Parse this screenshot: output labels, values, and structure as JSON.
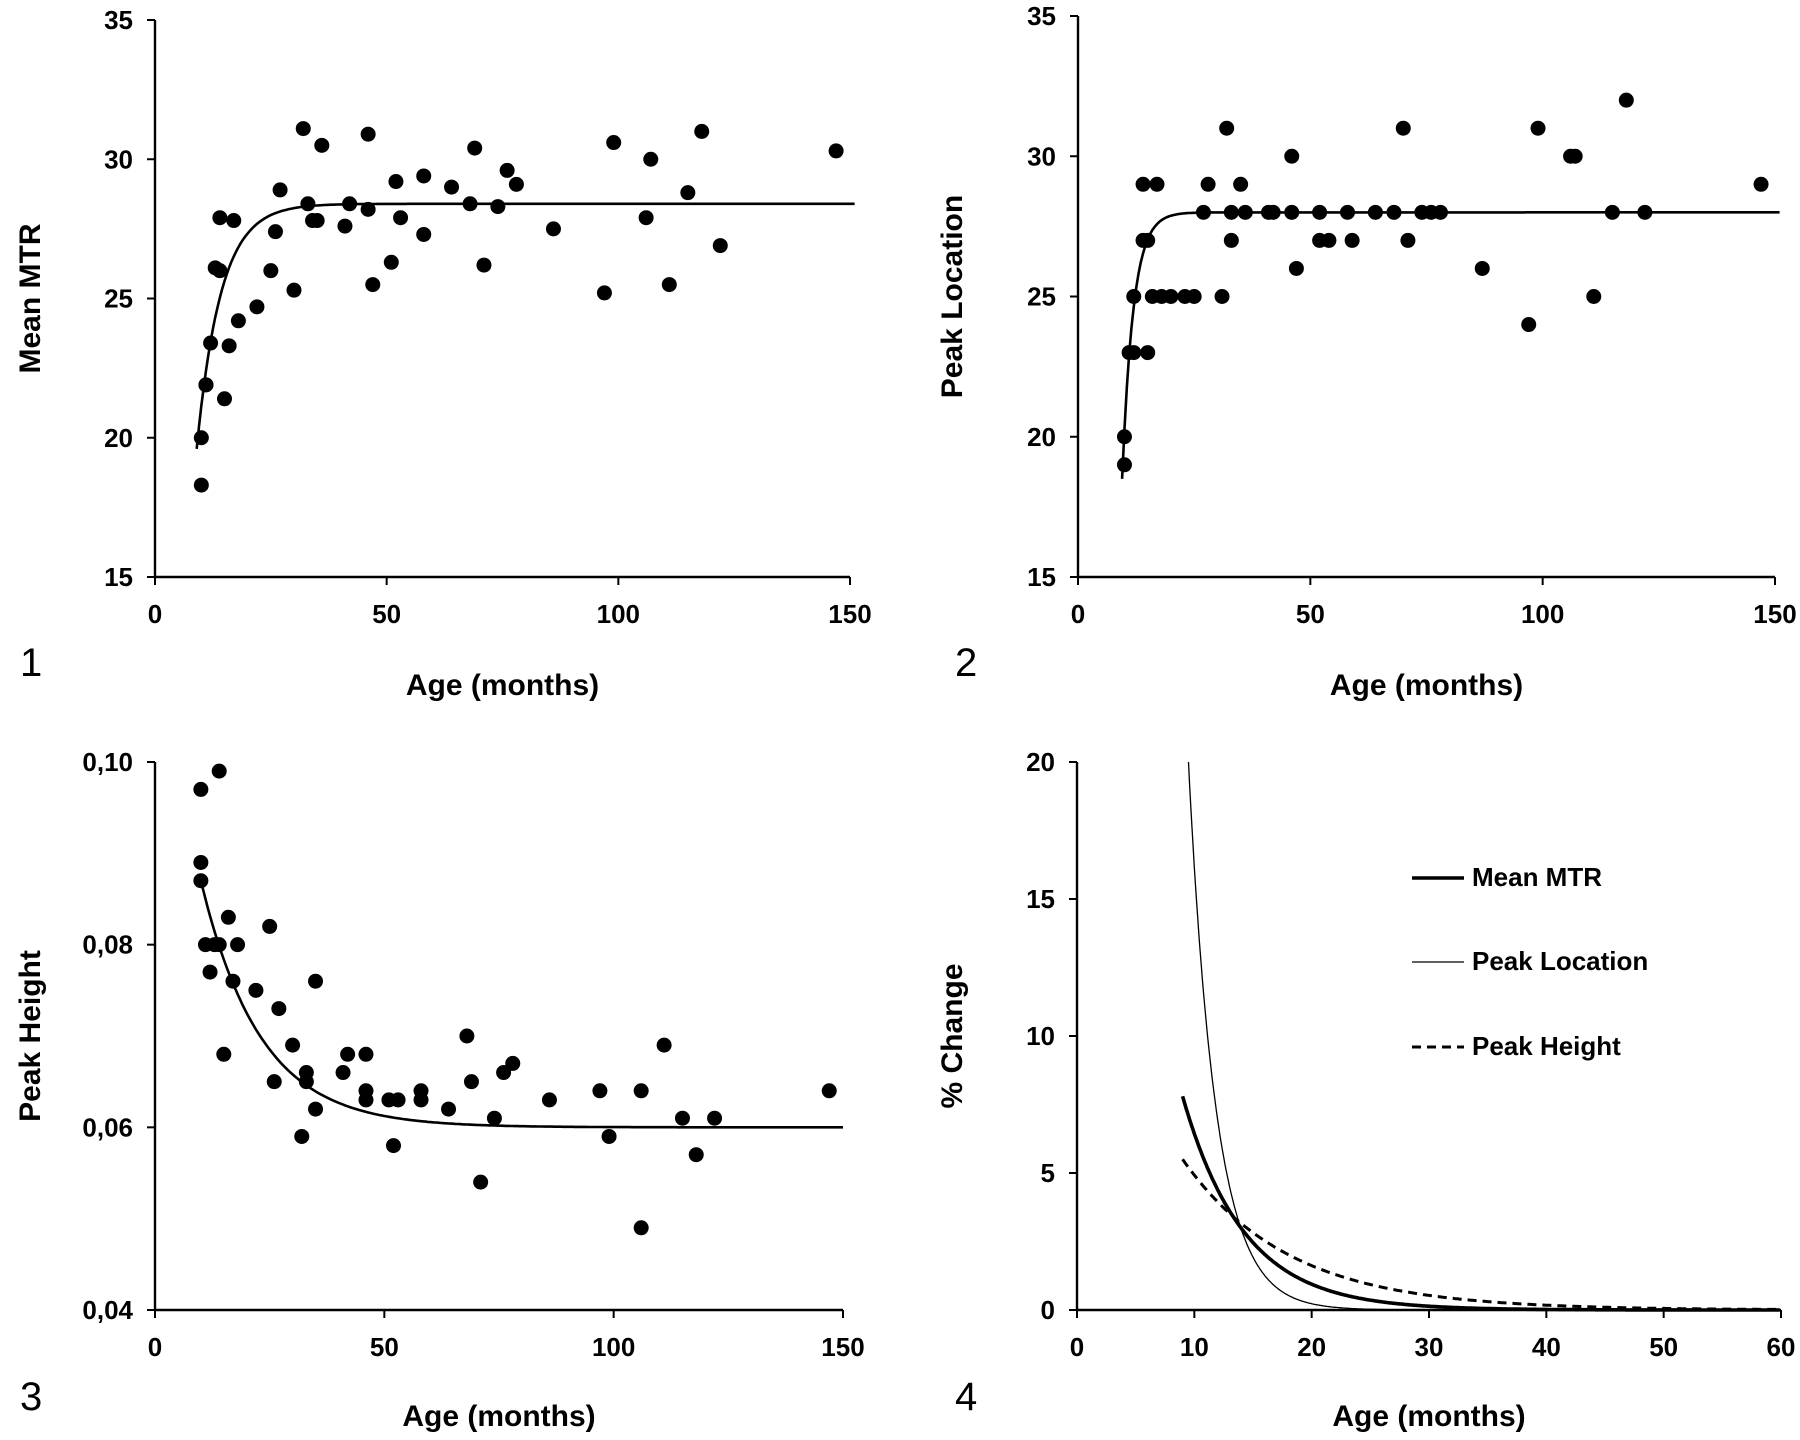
{
  "chart_data": [
    {
      "type": "scatter",
      "panel_label": "1",
      "xlabel": "Age (months)",
      "ylabel": "Mean MTR",
      "xlim": [
        0,
        150
      ],
      "ylim": [
        15,
        35
      ],
      "xticks": [
        "0",
        "50",
        "100",
        "150"
      ],
      "yticks": [
        "15",
        "20",
        "25",
        "30",
        "35"
      ],
      "points": [
        [
          10,
          20.0
        ],
        [
          10,
          18.3
        ],
        [
          11,
          21.9
        ],
        [
          11,
          21.9
        ],
        [
          12,
          23.4
        ],
        [
          13,
          26.1
        ],
        [
          14,
          27.9
        ],
        [
          14,
          26.0
        ],
        [
          15,
          21.4
        ],
        [
          16,
          23.3
        ],
        [
          17,
          27.8
        ],
        [
          18,
          24.2
        ],
        [
          22,
          24.7
        ],
        [
          25,
          26.0
        ],
        [
          26,
          27.4
        ],
        [
          27,
          28.9
        ],
        [
          30,
          25.3
        ],
        [
          32,
          31.1
        ],
        [
          33,
          28.4
        ],
        [
          34,
          27.8
        ],
        [
          35,
          27.8
        ],
        [
          36,
          30.5
        ],
        [
          41,
          27.6
        ],
        [
          42,
          28.4
        ],
        [
          46,
          28.2
        ],
        [
          46,
          30.9
        ],
        [
          47,
          25.5
        ],
        [
          51,
          26.3
        ],
        [
          52,
          29.2
        ],
        [
          53,
          27.9
        ],
        [
          58,
          29.4
        ],
        [
          58,
          27.3
        ],
        [
          64,
          29.0
        ],
        [
          68,
          28.4
        ],
        [
          69,
          30.4
        ],
        [
          71,
          26.2
        ],
        [
          74,
          28.3
        ],
        [
          76,
          29.6
        ],
        [
          78,
          29.1
        ],
        [
          86,
          27.5
        ],
        [
          97,
          25.2
        ],
        [
          99,
          30.6
        ],
        [
          106,
          27.9
        ],
        [
          107,
          30.0
        ],
        [
          111,
          25.5
        ],
        [
          115,
          28.8
        ],
        [
          118,
          31.0
        ],
        [
          122,
          26.9
        ],
        [
          147,
          30.3
        ]
      ],
      "fit": {
        "type": "exponential-recovery",
        "plateau": 28.4,
        "x0": 9,
        "y0": 19.6,
        "tau": 5.2,
        "x_end": 151
      }
    },
    {
      "type": "scatter",
      "panel_label": "2",
      "xlabel": "Age (months)",
      "ylabel": "Peak Location",
      "xlim": [
        0,
        150
      ],
      "ylim": [
        15,
        35
      ],
      "xticks": [
        "0",
        "50",
        "100",
        "150"
      ],
      "yticks": [
        "15",
        "20",
        "25",
        "30",
        "35"
      ],
      "points": [
        [
          10,
          20
        ],
        [
          10,
          19
        ],
        [
          11,
          23
        ],
        [
          12,
          23
        ],
        [
          12,
          25
        ],
        [
          14,
          27
        ],
        [
          14,
          29
        ],
        [
          15,
          27
        ],
        [
          15,
          23
        ],
        [
          16,
          25
        ],
        [
          17,
          29
        ],
        [
          18,
          25
        ],
        [
          20,
          25
        ],
        [
          23,
          25
        ],
        [
          25,
          25
        ],
        [
          27,
          28
        ],
        [
          28,
          29
        ],
        [
          31,
          25
        ],
        [
          32,
          31
        ],
        [
          33,
          28
        ],
        [
          33,
          27
        ],
        [
          35,
          29
        ],
        [
          36,
          28
        ],
        [
          41,
          28
        ],
        [
          42,
          28
        ],
        [
          46,
          28
        ],
        [
          46,
          30
        ],
        [
          47,
          26
        ],
        [
          52,
          27
        ],
        [
          52,
          28
        ],
        [
          54,
          27
        ],
        [
          58,
          28
        ],
        [
          59,
          27
        ],
        [
          64,
          28
        ],
        [
          68,
          28
        ],
        [
          70,
          31
        ],
        [
          71,
          27
        ],
        [
          74,
          28
        ],
        [
          76,
          28
        ],
        [
          78,
          28
        ],
        [
          87,
          26
        ],
        [
          97,
          24
        ],
        [
          99,
          31
        ],
        [
          106,
          30
        ],
        [
          107,
          30
        ],
        [
          111,
          25
        ],
        [
          115,
          28
        ],
        [
          118,
          32
        ],
        [
          122,
          28
        ],
        [
          147,
          29
        ]
      ],
      "fit": {
        "type": "exponential-recovery",
        "plateau": 28.0,
        "x0": 9.5,
        "y0": 18.5,
        "tau": 2.4,
        "x_end": 151
      }
    },
    {
      "type": "scatter",
      "panel_label": "3",
      "xlabel": "Age (months)",
      "ylabel": "Peak Height",
      "xlim": [
        0,
        150
      ],
      "ylim": [
        0.04,
        0.1
      ],
      "xticks": [
        "0",
        "50",
        "100",
        "150"
      ],
      "yticks": [
        "0,04",
        "0,06",
        "0,08",
        "0,10"
      ],
      "points": [
        [
          10,
          0.087
        ],
        [
          10,
          0.097
        ],
        [
          10,
          0.089
        ],
        [
          11,
          0.08
        ],
        [
          12,
          0.077
        ],
        [
          13,
          0.08
        ],
        [
          14,
          0.08
        ],
        [
          14,
          0.099
        ],
        [
          15,
          0.068
        ],
        [
          16,
          0.083
        ],
        [
          17,
          0.076
        ],
        [
          18,
          0.08
        ],
        [
          22,
          0.075
        ],
        [
          25,
          0.082
        ],
        [
          26,
          0.065
        ],
        [
          27,
          0.073
        ],
        [
          30,
          0.069
        ],
        [
          32,
          0.059
        ],
        [
          33,
          0.065
        ],
        [
          33,
          0.066
        ],
        [
          35,
          0.062
        ],
        [
          35,
          0.076
        ],
        [
          41,
          0.066
        ],
        [
          42,
          0.068
        ],
        [
          46,
          0.064
        ],
        [
          46,
          0.063
        ],
        [
          46,
          0.068
        ],
        [
          51,
          0.063
        ],
        [
          52,
          0.058
        ],
        [
          53,
          0.063
        ],
        [
          58,
          0.064
        ],
        [
          58,
          0.063
        ],
        [
          64,
          0.062
        ],
        [
          68,
          0.07
        ],
        [
          69,
          0.065
        ],
        [
          71,
          0.054
        ],
        [
          74,
          0.061
        ],
        [
          76,
          0.066
        ],
        [
          78,
          0.067
        ],
        [
          86,
          0.063
        ],
        [
          97,
          0.064
        ],
        [
          99,
          0.059
        ],
        [
          106,
          0.064
        ],
        [
          106,
          0.049
        ],
        [
          111,
          0.069
        ],
        [
          115,
          0.061
        ],
        [
          118,
          0.057
        ],
        [
          122,
          0.061
        ],
        [
          147,
          0.064
        ]
      ],
      "fit": {
        "type": "exponential-decay",
        "plateau": 0.06,
        "x0": 10,
        "y0": 0.087,
        "tau": 13.0,
        "x_end": 150
      }
    },
    {
      "type": "line",
      "panel_label": "4",
      "xlabel": "Age (months)",
      "ylabel": "% Change",
      "xlim": [
        0,
        60
      ],
      "ylim": [
        0,
        20
      ],
      "xticks": [
        "0",
        "10",
        "20",
        "30",
        "40",
        "50",
        "60"
      ],
      "yticks": [
        "0",
        "5",
        "10",
        "15",
        "20"
      ],
      "legend_position": "upper-right",
      "series": [
        {
          "name": "Mean MTR",
          "style": "thick",
          "x0": 9,
          "y0": 7.8,
          "tau": 5.2
        },
        {
          "name": "Peak Location",
          "style": "thin",
          "x0": 9.5,
          "y0": 20.0,
          "tau": 2.35
        },
        {
          "name": "Peak Height",
          "style": "dashed",
          "x0": 9,
          "y0": 5.5,
          "tau": 9.0
        }
      ]
    }
  ]
}
